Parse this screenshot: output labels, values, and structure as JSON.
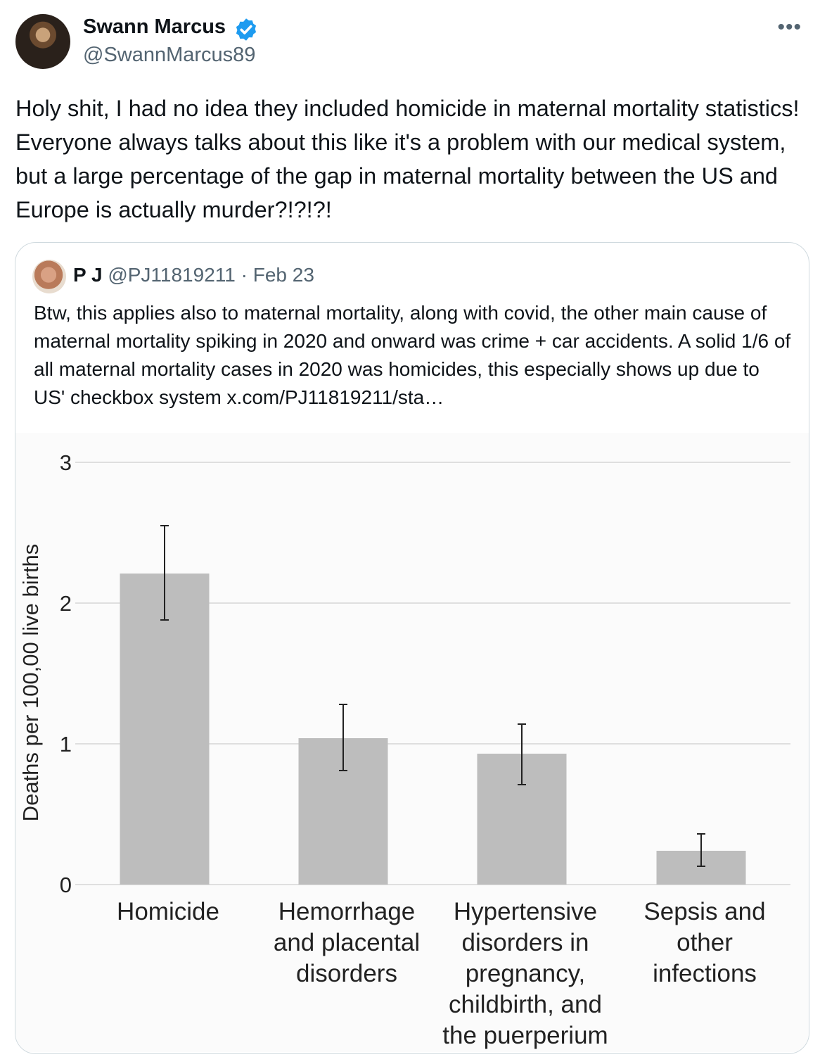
{
  "tweet": {
    "author_name": "Swann Marcus",
    "author_handle": "@SwannMarcus89",
    "text": "Holy shit, I had no idea they included homicide in maternal mortality statistics! Everyone always talks about this like it's a problem with our medical system, but a large percentage of the gap in maternal mortality between the US and Europe is actually murder?!?!?!",
    "more_icon": "more-horizontal-icon",
    "verified_icon": "verified-badge-icon",
    "colors": {
      "verified": "#1d9bf0",
      "secondary_text": "#536471",
      "border": "#cfd9de"
    }
  },
  "quote": {
    "author_name": "P J",
    "author_handle": "@PJ11819211",
    "separator": "·",
    "date": "Feb 23",
    "text": "Btw, this applies also to maternal mortality, along with covid, the other main cause of maternal mortality spiking in 2020 and onward was crime + car accidents. A solid 1/6 of all maternal mortality cases in 2020 was homicides, this especially shows up due to US' checkbox system  x.com/PJ11819211/sta…"
  },
  "chart_data": {
    "type": "bar",
    "ylabel": "Deaths per 100,00 live births",
    "ylim": [
      0,
      3
    ],
    "yticks": [
      0,
      1,
      2,
      3
    ],
    "grid": true,
    "categories": [
      [
        "Homicide"
      ],
      [
        "Hemorrhage",
        "and placental",
        "disorders"
      ],
      [
        "Hypertensive",
        "disorders in",
        "pregnancy,",
        "childbirth, and",
        "the puerperium"
      ],
      [
        "Sepsis and",
        "other",
        "infections"
      ]
    ],
    "values": [
      2.21,
      1.04,
      0.93,
      0.24
    ],
    "error_low": [
      1.88,
      0.81,
      0.71,
      0.13
    ],
    "error_high": [
      2.55,
      1.28,
      1.14,
      0.36
    ],
    "bar_color": "#bdbdbd"
  }
}
